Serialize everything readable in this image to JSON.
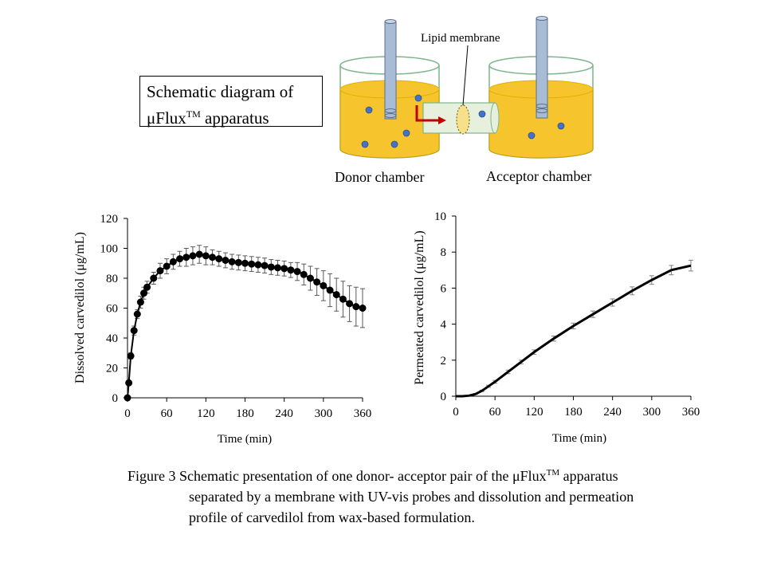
{
  "schematic": {
    "box_title_line1": "Schematic diagram of",
    "box_title_line2_prefix": "μFlux",
    "box_title_superscript": "TM",
    "box_title_line2_suffix": " apparatus",
    "membrane_label": "Lipid membrane",
    "donor_label": "Donor chamber",
    "acceptor_label": "Acceptor chamber",
    "liquid_color": "#F6C52E",
    "particle_color": "#4472C4",
    "arrow_color": "#C00000"
  },
  "chart_data": [
    {
      "type": "scatter",
      "title": "",
      "xlabel": "Time (min)",
      "ylabel": "Dissolved carvedilol (μg/mL)",
      "xlim": [
        0,
        360
      ],
      "ylim": [
        0,
        120
      ],
      "xticks": [
        "0",
        "60",
        "120",
        "180",
        "240",
        "300",
        "360"
      ],
      "yticks": [
        "0",
        "20",
        "40",
        "60",
        "80",
        "100",
        "120"
      ],
      "x": [
        0,
        2,
        5,
        10,
        15,
        20,
        25,
        30,
        40,
        50,
        60,
        70,
        80,
        90,
        100,
        110,
        120,
        130,
        140,
        150,
        160,
        170,
        180,
        190,
        200,
        210,
        220,
        230,
        240,
        250,
        260,
        270,
        280,
        290,
        300,
        310,
        320,
        330,
        340,
        350,
        360
      ],
      "y": [
        0,
        10,
        28,
        45,
        56,
        64,
        70,
        74,
        80,
        85,
        88,
        91,
        93,
        94,
        95,
        96,
        95,
        94,
        93,
        92,
        91,
        90.5,
        90,
        89.5,
        89,
        88.5,
        87.5,
        87,
        86.5,
        85.5,
        84.5,
        82.5,
        80,
        77.5,
        75,
        72,
        69,
        66,
        63,
        61,
        60
      ],
      "error": [
        0,
        1,
        2,
        3,
        3,
        4,
        4,
        4,
        4,
        5,
        5,
        5,
        5,
        6,
        6,
        6,
        6,
        5,
        5,
        5,
        5,
        5,
        5,
        5,
        5,
        5,
        5,
        5,
        5,
        5,
        6,
        7,
        8,
        9,
        10,
        11,
        11,
        12,
        12,
        13,
        13
      ],
      "marker_color": "#000000",
      "error_color": "#595959"
    },
    {
      "type": "line",
      "title": "",
      "xlabel": "Time (min)",
      "ylabel": "Permeated carvedilol (μg/mL)",
      "xlim": [
        0,
        360
      ],
      "ylim": [
        0,
        10
      ],
      "xticks": [
        "0",
        "60",
        "120",
        "180",
        "240",
        "300",
        "360"
      ],
      "yticks": [
        "0",
        "2",
        "4",
        "6",
        "8",
        "10"
      ],
      "x": [
        0,
        10,
        20,
        30,
        40,
        50,
        60,
        80,
        100,
        120,
        150,
        180,
        210,
        240,
        270,
        300,
        330,
        360
      ],
      "y": [
        0,
        0,
        0.03,
        0.12,
        0.3,
        0.55,
        0.8,
        1.35,
        1.9,
        2.45,
        3.2,
        3.9,
        4.55,
        5.2,
        5.85,
        6.45,
        7.0,
        7.25
      ],
      "error": [
        0,
        0,
        0,
        0.02,
        0.04,
        0.06,
        0.08,
        0.1,
        0.1,
        0.12,
        0.14,
        0.16,
        0.18,
        0.2,
        0.22,
        0.24,
        0.26,
        0.3
      ],
      "line_color": "#000000",
      "error_color": "#7F7F7F"
    }
  ],
  "caption": {
    "line1_prefix": "Figure 3 Schematic presentation of one donor- acceptor pair of the μFlux",
    "line1_superscript": "TM",
    "line1_suffix": " apparatus",
    "line2": "separated by a membrane with UV-vis probes and dissolution and permeation",
    "line3": "profile of carvedilol from wax-based formulation."
  }
}
